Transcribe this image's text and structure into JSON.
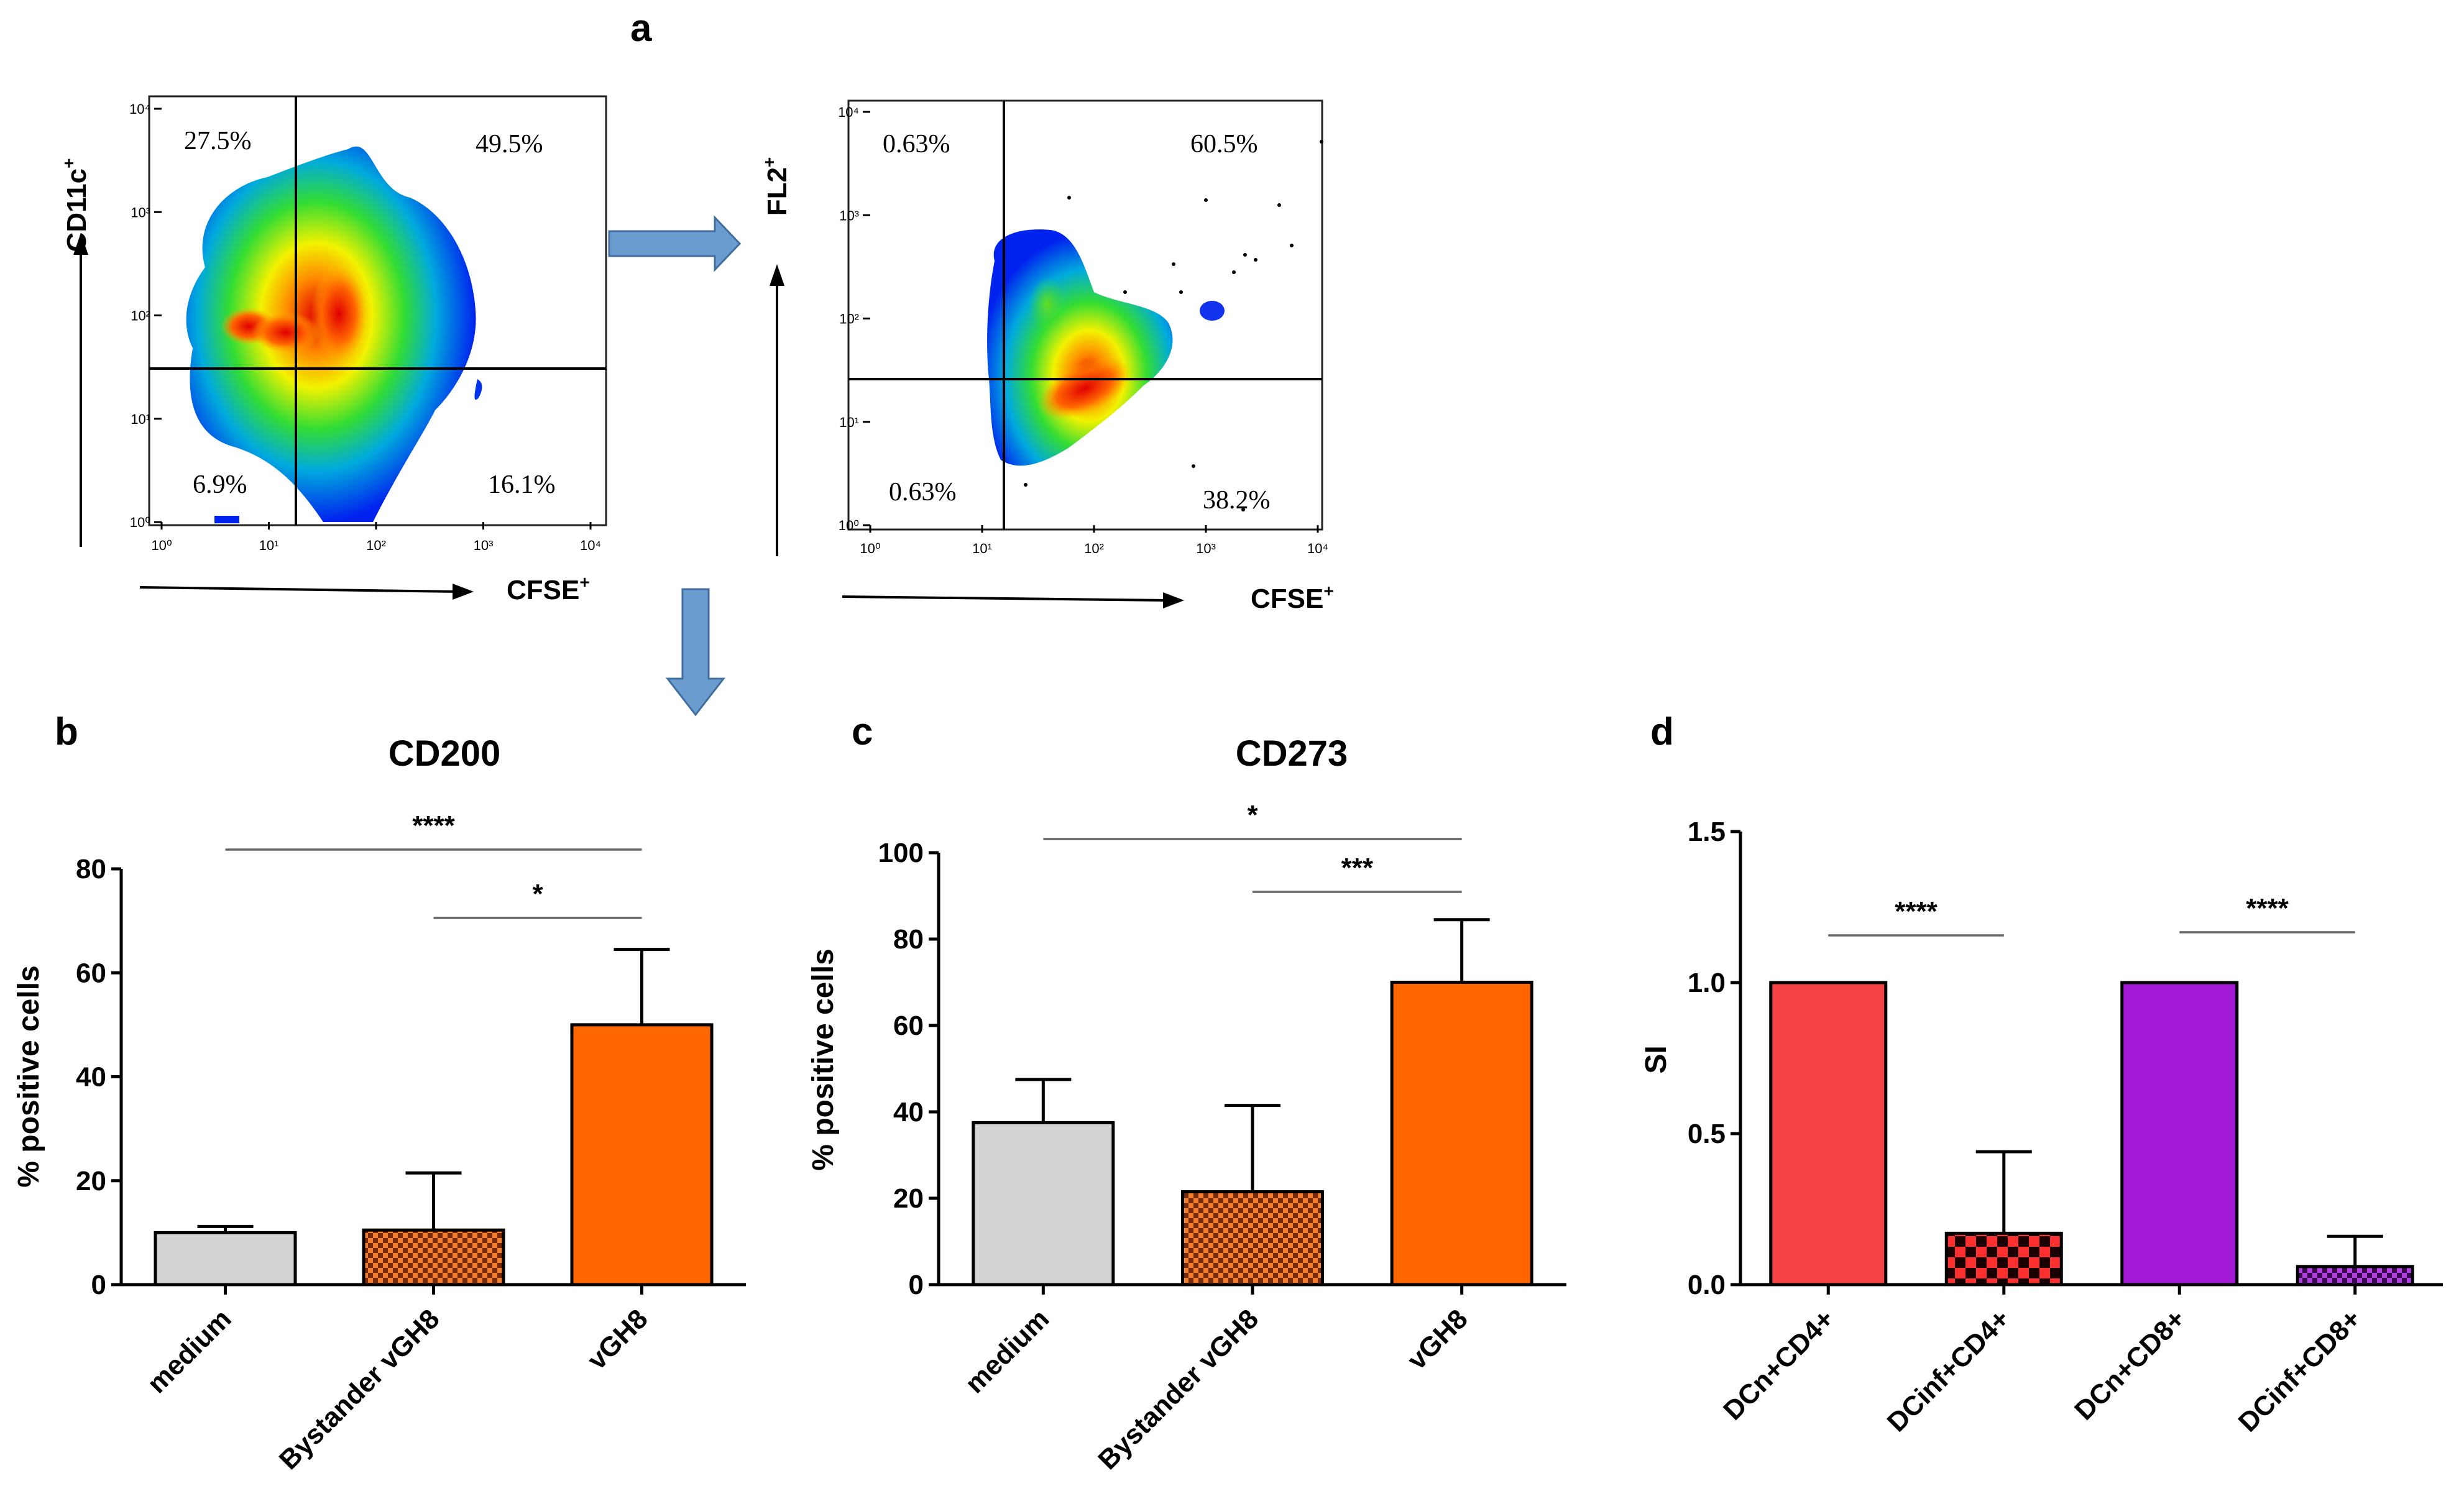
{
  "panel_labels": {
    "a": "a",
    "b": "b",
    "c": "c",
    "d": "d"
  },
  "colors": {
    "medium": "#d3d3d3",
    "bystander": "#b84a10",
    "vgh8": "#ff6600",
    "dcn_cd4": "#f44144",
    "dcinf_cd4": "#e02020",
    "dcn_cd8": "#a319d6",
    "dcinf_cd8": "#9a2fd0",
    "arrow": "#6699cc"
  },
  "flow": [
    {
      "y_label": "CD11c",
      "y_label_sup": "+",
      "x_label": "CFSE",
      "x_label_sup": "+",
      "x_ticks": [
        "10⁰",
        "10¹",
        "10²",
        "10³",
        "10⁴"
      ],
      "y_ticks": [
        "10⁰",
        "10¹",
        "10²",
        "10³",
        "10⁴"
      ],
      "quadrants": {
        "upper_left": "27.5%",
        "upper_right": "49.5%",
        "lower_left": "6.9%",
        "lower_right": "16.1%"
      }
    },
    {
      "y_label": "FL2",
      "y_label_sup": "+",
      "x_label": "CFSE",
      "x_label_sup": "+",
      "x_ticks": [
        "10⁰",
        "10¹",
        "10²",
        "10³",
        "10⁴"
      ],
      "y_ticks": [
        "10⁰",
        "10¹",
        "10²",
        "10³",
        "10⁴"
      ],
      "quadrants": {
        "upper_left": "0.63%",
        "upper_right": "60.5%",
        "lower_left": "0.63%",
        "lower_right": "38.2%"
      }
    }
  ],
  "chart_data": [
    {
      "type": "bar",
      "panel": "b",
      "title": "CD200",
      "ylabel": "% positive cells",
      "xlabel": "",
      "ylim": [
        0,
        80
      ],
      "yticks": [
        0,
        20,
        40,
        60,
        80
      ],
      "categories": [
        "medium",
        "Bystander vGH8",
        "vGH8"
      ],
      "values": [
        10,
        10.5,
        50
      ],
      "errors": [
        1.2,
        11,
        14.5
      ],
      "fills": [
        "medium",
        "bystander",
        "vgh8"
      ],
      "patterns": [
        "none",
        "check",
        "none"
      ],
      "significance": [
        {
          "from": 0,
          "to": 2,
          "label": "****"
        },
        {
          "from": 1,
          "to": 2,
          "label": "*"
        }
      ]
    },
    {
      "type": "bar",
      "panel": "c",
      "title": "CD273",
      "ylabel": "% positive cells",
      "xlabel": "",
      "ylim": [
        0,
        100
      ],
      "yticks": [
        0,
        20,
        40,
        60,
        80,
        100
      ],
      "categories": [
        "medium",
        "Bystander vGH8",
        "vGH8"
      ],
      "values": [
        37.5,
        21.5,
        70
      ],
      "errors": [
        10,
        20,
        14.5
      ],
      "fills": [
        "medium",
        "bystander",
        "vgh8"
      ],
      "patterns": [
        "none",
        "check",
        "none"
      ],
      "significance": [
        {
          "from": 0,
          "to": 2,
          "label": "*"
        },
        {
          "from": 1,
          "to": 2,
          "label": "***"
        }
      ]
    },
    {
      "type": "bar",
      "panel": "d",
      "title": "",
      "ylabel": "SI",
      "xlabel": "",
      "ylim": [
        0,
        1.5
      ],
      "yticks": [
        0.0,
        0.5,
        1.0,
        1.5
      ],
      "ytick_labels": [
        "0.0",
        "0.5",
        "1.0",
        "1.5"
      ],
      "categories": [
        "DCn+CD4+",
        "DCinf+CD4+",
        "DCn+CD8+",
        "DCinf+CD8+"
      ],
      "values": [
        1.0,
        0.17,
        1.0,
        0.06
      ],
      "errors": [
        0,
        0.27,
        0,
        0.1
      ],
      "fills": [
        "dcn_cd4",
        "dcinf_cd4",
        "dcn_cd8",
        "dcinf_cd8"
      ],
      "patterns": [
        "none",
        "check",
        "none",
        "check"
      ],
      "significance": [
        {
          "from": 0,
          "to": 1,
          "label": "****"
        },
        {
          "from": 2,
          "to": 3,
          "label": "****"
        }
      ]
    }
  ]
}
